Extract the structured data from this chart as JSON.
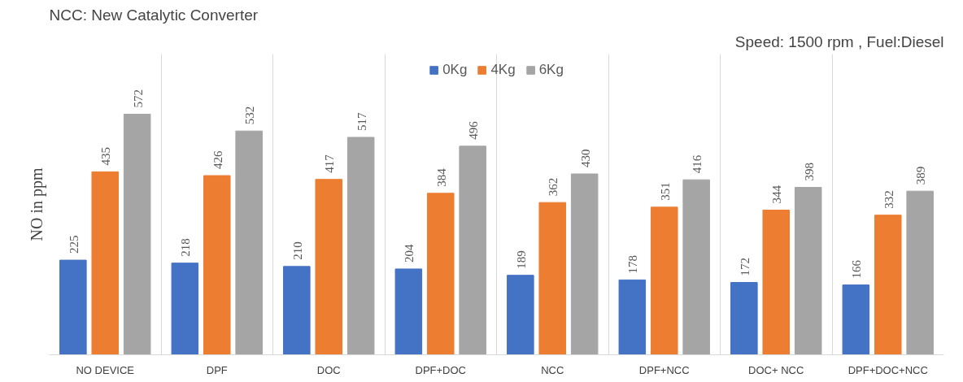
{
  "chart_data": {
    "type": "bar",
    "title": "NCC: New Catalytic Converter",
    "annotations": [
      "Speed: 1500 rpm , Fuel:Diesel"
    ],
    "ylabel": "NO in ppm",
    "categories": [
      "NO DEVICE",
      "DPF",
      "DOC",
      "DPF+DOC",
      "NCC",
      "DPF+NCC",
      "DOC+ NCC",
      "DPF+DOC+NCC"
    ],
    "series": [
      {
        "name": "0Kg",
        "color": "#4472c4",
        "values": [
          225,
          218,
          210,
          204,
          189,
          178,
          172,
          166
        ]
      },
      {
        "name": "4Kg",
        "color": "#ed7d31",
        "values": [
          435,
          426,
          417,
          384,
          362,
          351,
          344,
          332
        ]
      },
      {
        "name": "6Kg",
        "color": "#a5a5a5",
        "values": [
          572,
          532,
          517,
          496,
          430,
          416,
          398,
          389
        ]
      }
    ],
    "data_labels": true,
    "legend": "top",
    "grid": "x"
  }
}
